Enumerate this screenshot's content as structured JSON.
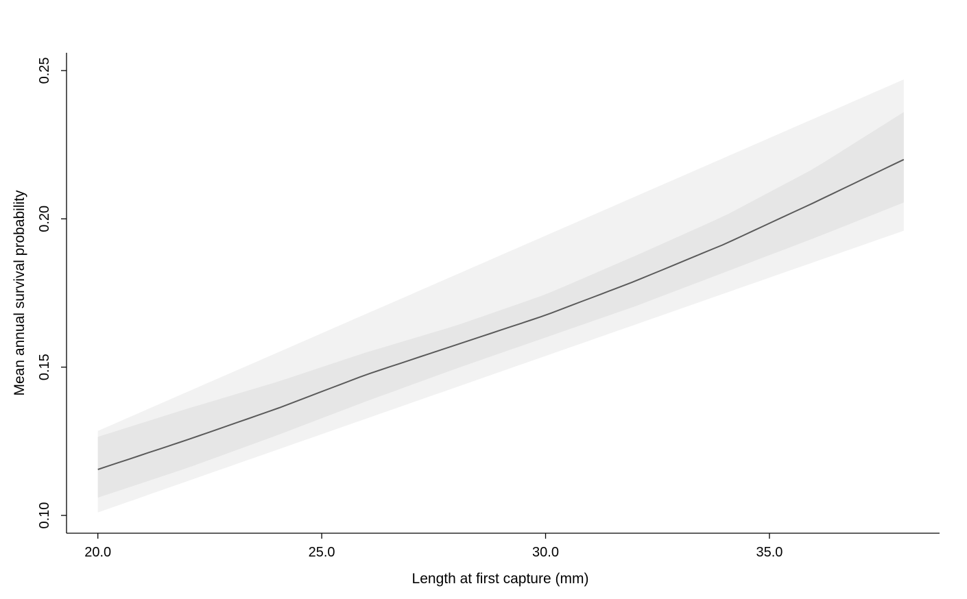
{
  "chart_data": {
    "type": "line",
    "xlabel": "Length at first capture (mm)",
    "ylabel": "Mean annual survival probability",
    "xlim": [
      19.3,
      38.8
    ],
    "ylim": [
      0.094,
      0.256
    ],
    "x_ticks": [
      20.0,
      25.0,
      30.0,
      35.0
    ],
    "x_tick_labels": [
      "20.0",
      "25.0",
      "30.0",
      "35.0"
    ],
    "y_ticks": [
      0.1,
      0.15,
      0.2,
      0.25
    ],
    "y_tick_labels": [
      "0.10",
      "0.15",
      "0.20",
      "0.25"
    ],
    "grid": false,
    "series": [
      {
        "role": "mean",
        "x": [
          20,
          22,
          24,
          26,
          28,
          30,
          32,
          34,
          36,
          38
        ],
        "y": [
          0.1155,
          0.1255,
          0.136,
          0.1475,
          0.1575,
          0.1675,
          0.179,
          0.1915,
          0.2055,
          0.22
        ]
      },
      {
        "role": "band-upper",
        "x": [
          20,
          22,
          24,
          26,
          28,
          30,
          32,
          34,
          36,
          38
        ],
        "y": [
          0.1265,
          0.136,
          0.145,
          0.155,
          0.164,
          0.1745,
          0.1875,
          0.201,
          0.217,
          0.236
        ]
      },
      {
        "role": "band-lower",
        "x": [
          20,
          22,
          24,
          26,
          28,
          30,
          32,
          34,
          36,
          38
        ],
        "y": [
          0.106,
          0.116,
          0.127,
          0.1385,
          0.1495,
          0.16,
          0.1705,
          0.182,
          0.1935,
          0.2055
        ]
      },
      {
        "role": "band-outer-upper",
        "x": [
          20,
          38
        ],
        "y": [
          0.1285,
          0.247
        ]
      },
      {
        "role": "band-outer-lower",
        "x": [
          20,
          38
        ],
        "y": [
          0.101,
          0.196
        ]
      }
    ],
    "colors": {
      "mean_line": "#5a5a5a",
      "band_fill": "#e6e6e6",
      "band_faint": "#f2f2f2",
      "axis": "#000000"
    }
  }
}
